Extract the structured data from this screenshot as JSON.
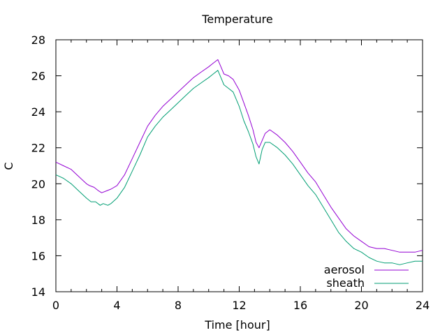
{
  "chart_data": {
    "type": "line",
    "title": "Temperature",
    "xlabel": "Time [hour]",
    "ylabel": "C",
    "xlim": [
      0,
      24
    ],
    "ylim": [
      14,
      28
    ],
    "xticks": [
      0,
      4,
      8,
      12,
      16,
      20,
      24
    ],
    "yticks": [
      14,
      16,
      18,
      20,
      22,
      24,
      26,
      28
    ],
    "grid": false,
    "legend_position": "bottom-right",
    "series": [
      {
        "name": "aerosol",
        "color": "#9400d3",
        "x": [
          0,
          0.5,
          1,
          1.5,
          2,
          2.2,
          2.5,
          2.8,
          3,
          3.3,
          3.6,
          4,
          4.5,
          5,
          5.5,
          6,
          6.5,
          7,
          7.5,
          8,
          8.5,
          9,
          9.5,
          10,
          10.3,
          10.6,
          10.8,
          11,
          11.3,
          11.6,
          12,
          12.3,
          12.6,
          12.9,
          13.1,
          13.3,
          13.5,
          13.7,
          14,
          14.5,
          15,
          15.5,
          16,
          16.5,
          17,
          17.5,
          18,
          18.5,
          19,
          19.5,
          20,
          20.5,
          21,
          21.5,
          22,
          22.5,
          23,
          23.5,
          24
        ],
        "y": [
          21.2,
          21.0,
          20.8,
          20.4,
          20.0,
          19.9,
          19.8,
          19.6,
          19.5,
          19.6,
          19.7,
          19.9,
          20.5,
          21.4,
          22.3,
          23.2,
          23.8,
          24.3,
          24.7,
          25.1,
          25.5,
          25.9,
          26.2,
          26.5,
          26.7,
          26.9,
          26.5,
          26.1,
          26.0,
          25.8,
          25.2,
          24.5,
          23.8,
          23.0,
          22.3,
          22.0,
          22.4,
          22.8,
          23.0,
          22.7,
          22.3,
          21.8,
          21.2,
          20.6,
          20.1,
          19.4,
          18.7,
          18.1,
          17.5,
          17.1,
          16.8,
          16.5,
          16.4,
          16.4,
          16.3,
          16.2,
          16.2,
          16.2,
          16.3
        ]
      },
      {
        "name": "sheath",
        "color": "#009e73",
        "x": [
          0,
          0.5,
          1,
          1.5,
          2,
          2.3,
          2.6,
          2.9,
          3.1,
          3.4,
          3.6,
          4,
          4.5,
          5,
          5.5,
          6,
          6.5,
          7,
          7.5,
          8,
          8.5,
          9,
          9.5,
          10,
          10.3,
          10.6,
          10.8,
          11,
          11.3,
          11.6,
          12,
          12.3,
          12.6,
          12.9,
          13.1,
          13.3,
          13.5,
          13.7,
          14,
          14.5,
          15,
          15.5,
          16,
          16.5,
          17,
          17.5,
          18,
          18.5,
          19,
          19.5,
          20,
          20.5,
          21,
          21.5,
          22,
          22.5,
          23,
          23.5,
          24
        ],
        "y": [
          20.5,
          20.3,
          20.0,
          19.6,
          19.2,
          19.0,
          19.0,
          18.8,
          18.9,
          18.8,
          18.9,
          19.2,
          19.8,
          20.7,
          21.6,
          22.6,
          23.2,
          23.7,
          24.1,
          24.5,
          24.9,
          25.3,
          25.6,
          25.9,
          26.1,
          26.3,
          25.9,
          25.5,
          25.3,
          25.1,
          24.3,
          23.5,
          22.9,
          22.2,
          21.5,
          21.1,
          21.9,
          22.3,
          22.3,
          22.0,
          21.6,
          21.1,
          20.5,
          19.9,
          19.4,
          18.7,
          18.0,
          17.3,
          16.8,
          16.4,
          16.2,
          15.9,
          15.7,
          15.6,
          15.6,
          15.5,
          15.6,
          15.7,
          15.7
        ]
      }
    ]
  }
}
